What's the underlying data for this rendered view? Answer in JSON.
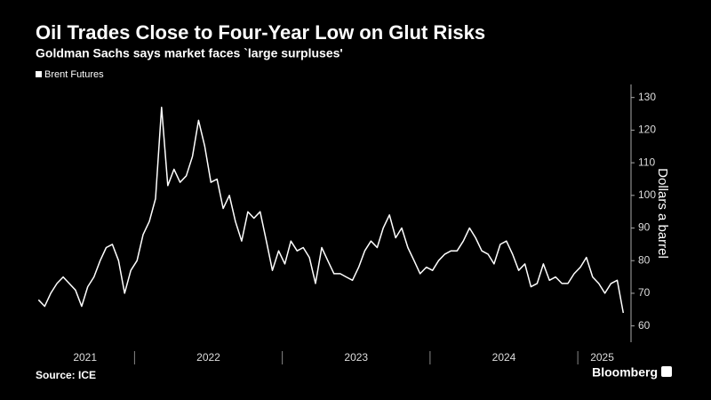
{
  "chart_data": {
    "type": "line",
    "title": "Oil Trades Close to Four-Year Low on Glut Risks",
    "subtitle": "Goldman Sachs says market faces `large surpluses'",
    "y_axis_label": "Dollars a barrel",
    "source": "Source: ICE",
    "brand": "Bloomberg",
    "series": [
      {
        "name": "Brent Futures",
        "color": "#ffffff",
        "x": [
          2021.35,
          2021.392,
          2021.433,
          2021.475,
          2021.517,
          2021.558,
          2021.6,
          2021.642,
          2021.683,
          2021.725,
          2021.767,
          2021.808,
          2021.85,
          2021.892,
          2021.933,
          2021.975,
          2022.017,
          2022.058,
          2022.1,
          2022.142,
          2022.183,
          2022.225,
          2022.267,
          2022.308,
          2022.35,
          2022.392,
          2022.433,
          2022.475,
          2022.517,
          2022.558,
          2022.6,
          2022.642,
          2022.683,
          2022.725,
          2022.767,
          2022.808,
          2022.85,
          2022.892,
          2022.933,
          2022.975,
          2023.017,
          2023.058,
          2023.1,
          2023.142,
          2023.183,
          2023.225,
          2023.267,
          2023.308,
          2023.35,
          2023.392,
          2023.433,
          2023.475,
          2023.517,
          2023.558,
          2023.6,
          2023.642,
          2023.683,
          2023.725,
          2023.767,
          2023.808,
          2023.85,
          2023.892,
          2023.933,
          2023.975,
          2024.017,
          2024.058,
          2024.1,
          2024.142,
          2024.183,
          2024.225,
          2024.267,
          2024.308,
          2024.35,
          2024.392,
          2024.433,
          2024.475,
          2024.517,
          2024.558,
          2024.6,
          2024.642,
          2024.683,
          2024.725,
          2024.767,
          2024.808,
          2024.85,
          2024.892,
          2024.933,
          2024.975,
          2025.017,
          2025.058,
          2025.1,
          2025.142,
          2025.183,
          2025.225,
          2025.267,
          2025.308
        ],
        "values": [
          68,
          66,
          70,
          73,
          75,
          73,
          71,
          66,
          72,
          75,
          80,
          84,
          85,
          80,
          70,
          77,
          80,
          88,
          92,
          99,
          127,
          103,
          108,
          104,
          106,
          112,
          123,
          115,
          104,
          105,
          96,
          100,
          92,
          86,
          95,
          93,
          95,
          86,
          77,
          83,
          79,
          86,
          83,
          84,
          81,
          73,
          84,
          80,
          76,
          76,
          75,
          74,
          78,
          83,
          86,
          84,
          90,
          94,
          87,
          90,
          84,
          80,
          76,
          78,
          77,
          80,
          82,
          83,
          83,
          86,
          90,
          87,
          83,
          82,
          79,
          85,
          86,
          82,
          77,
          79,
          72,
          73,
          79,
          74,
          75,
          73,
          73,
          76,
          78,
          81,
          75,
          73,
          70,
          73,
          74,
          64
        ]
      }
    ],
    "xlim": [
      2021.33,
      2025.33
    ],
    "xticks": [
      {
        "value": 2021,
        "label": "2021"
      },
      {
        "value": 2022,
        "label": "2022"
      },
      {
        "value": 2023,
        "label": "2023"
      },
      {
        "value": 2024,
        "label": "2024"
      },
      {
        "value": 2025,
        "label": "2025"
      }
    ],
    "ylim": [
      55,
      134
    ],
    "yticks": [
      60,
      70,
      80,
      90,
      100,
      110,
      120,
      130
    ],
    "legend": "top-left"
  }
}
